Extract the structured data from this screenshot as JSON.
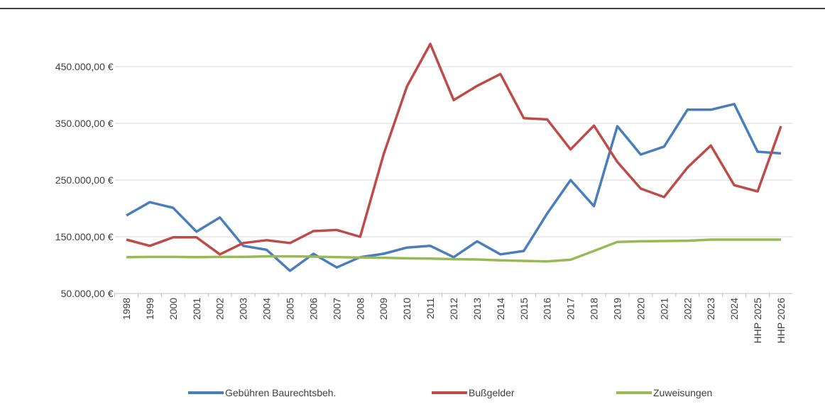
{
  "chart_data": {
    "type": "line",
    "categories": [
      "1998",
      "1999",
      "2000",
      "2001",
      "2002",
      "2003",
      "2004",
      "2005",
      "2006",
      "2007",
      "2008",
      "2009",
      "2010",
      "2011",
      "2012",
      "2013",
      "2014",
      "2015",
      "2016",
      "2017",
      "2018",
      "2019",
      "2020",
      "2021",
      "2022",
      "2023",
      "2024",
      "HHP 2025",
      "HHP 2026"
    ],
    "series": [
      {
        "name": "Gebühren Baurechtsbeh.",
        "color": "#4a7ebb",
        "values": [
          187500,
          211000,
          201000,
          159000,
          184000,
          134000,
          127000,
          90000,
          120000,
          96000,
          114000,
          120000,
          131000,
          134000,
          114000,
          142000,
          119000,
          125000,
          191000,
          250000,
          204000,
          345000,
          295000,
          309000,
          374000,
          374000,
          384000,
          300000,
          297000
        ]
      },
      {
        "name": "Bußgelder",
        "color": "#be4b48",
        "values": [
          145000,
          134000,
          149000,
          149000,
          119000,
          139000,
          144000,
          139000,
          160000,
          162000,
          150000,
          295000,
          415000,
          490000,
          391000,
          416000,
          437000,
          359000,
          357000,
          304000,
          346000,
          282000,
          235000,
          220000,
          272000,
          311000,
          241000,
          230000,
          345000
        ]
      },
      {
        "name": "Zuweisungen",
        "color": "#98b954",
        "values": [
          114000,
          114500,
          114500,
          114000,
          114500,
          114500,
          115500,
          115500,
          115000,
          114000,
          113500,
          113000,
          112000,
          111500,
          110500,
          110000,
          108500,
          107500,
          106500,
          109500,
          125000,
          141000,
          142000,
          142500,
          143000,
          145000,
          145000,
          145000,
          145000
        ]
      }
    ],
    "ylim": [
      50000,
      500000
    ],
    "yticks": [
      {
        "value": 50000,
        "label": "50.000,00 €"
      },
      {
        "value": 150000,
        "label": "150.000,00 €"
      },
      {
        "value": 250000,
        "label": "250.000,00 €"
      },
      {
        "value": 350000,
        "label": "350.000,00 €"
      },
      {
        "value": 450000,
        "label": "450.000,00 €"
      }
    ],
    "grid": true,
    "legend": "bottom"
  }
}
